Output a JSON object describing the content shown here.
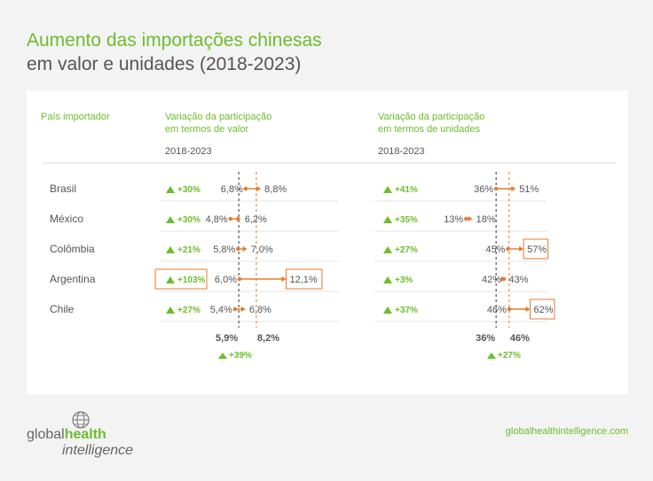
{
  "title": {
    "line1": "Aumento das importações chinesas",
    "line2": "em valor e unidades (2018-2023)"
  },
  "headers": {
    "country": "País importador",
    "value_line1": "Variação da participação",
    "value_line2": "em termos de valor",
    "units_line1": "Variação da participação",
    "units_line2": "em termos de unidades",
    "period": "2018-2023"
  },
  "chart_data": {
    "type": "dumbbell",
    "categories": [
      "Brasil",
      "México",
      "Colômbia",
      "Argentina",
      "Chile"
    ],
    "panels": [
      {
        "name": "valor",
        "start": [
          6.8,
          4.8,
          5.8,
          6.0,
          5.4
        ],
        "end": [
          8.8,
          6.2,
          7.0,
          12.1,
          6.8
        ],
        "start_labels": [
          "6,8%",
          "4,8%",
          "5,8%",
          "6,0%",
          "5,4%"
        ],
        "end_labels": [
          "8,8%",
          "6,2%",
          "7,0%",
          "12,1%",
          "6,8%"
        ],
        "change_labels": [
          "+30%",
          "+30%",
          "+21%",
          "+103%",
          "+27%"
        ],
        "highlight_end": [
          false,
          false,
          false,
          true,
          false
        ],
        "highlight_change": [
          false,
          false,
          false,
          true,
          false
        ],
        "avg_start": 5.9,
        "avg_end": 8.2,
        "avg_start_label": "5,9%",
        "avg_end_label": "8,2%",
        "avg_change_label": "+39%"
      },
      {
        "name": "unidades",
        "start": [
          36,
          13,
          45,
          42,
          46
        ],
        "end": [
          51,
          18,
          57,
          43,
          62
        ],
        "start_labels": [
          "36%",
          "13%",
          "45%",
          "42%",
          "46%"
        ],
        "end_labels": [
          "51%",
          "18%",
          "57%",
          "43%",
          "62%"
        ],
        "change_labels": [
          "+41%",
          "+35%",
          "+27%",
          "+3%",
          "+37%"
        ],
        "highlight_end": [
          false,
          false,
          true,
          false,
          true
        ],
        "highlight_change": [
          false,
          false,
          false,
          false,
          false
        ],
        "avg_start": 36,
        "avg_end": 46,
        "avg_start_label": "36%",
        "avg_end_label": "46%",
        "avg_change_label": "+27%"
      }
    ]
  },
  "footer": {
    "logo_global": "global",
    "logo_health": "health",
    "logo_intelligence": "intelligence",
    "url": "globalhealthintelligence.com"
  },
  "colors": {
    "green": "#6cbd2c",
    "orange": "#e8782a",
    "text": "#555555",
    "grid": "#e6e6e6"
  }
}
